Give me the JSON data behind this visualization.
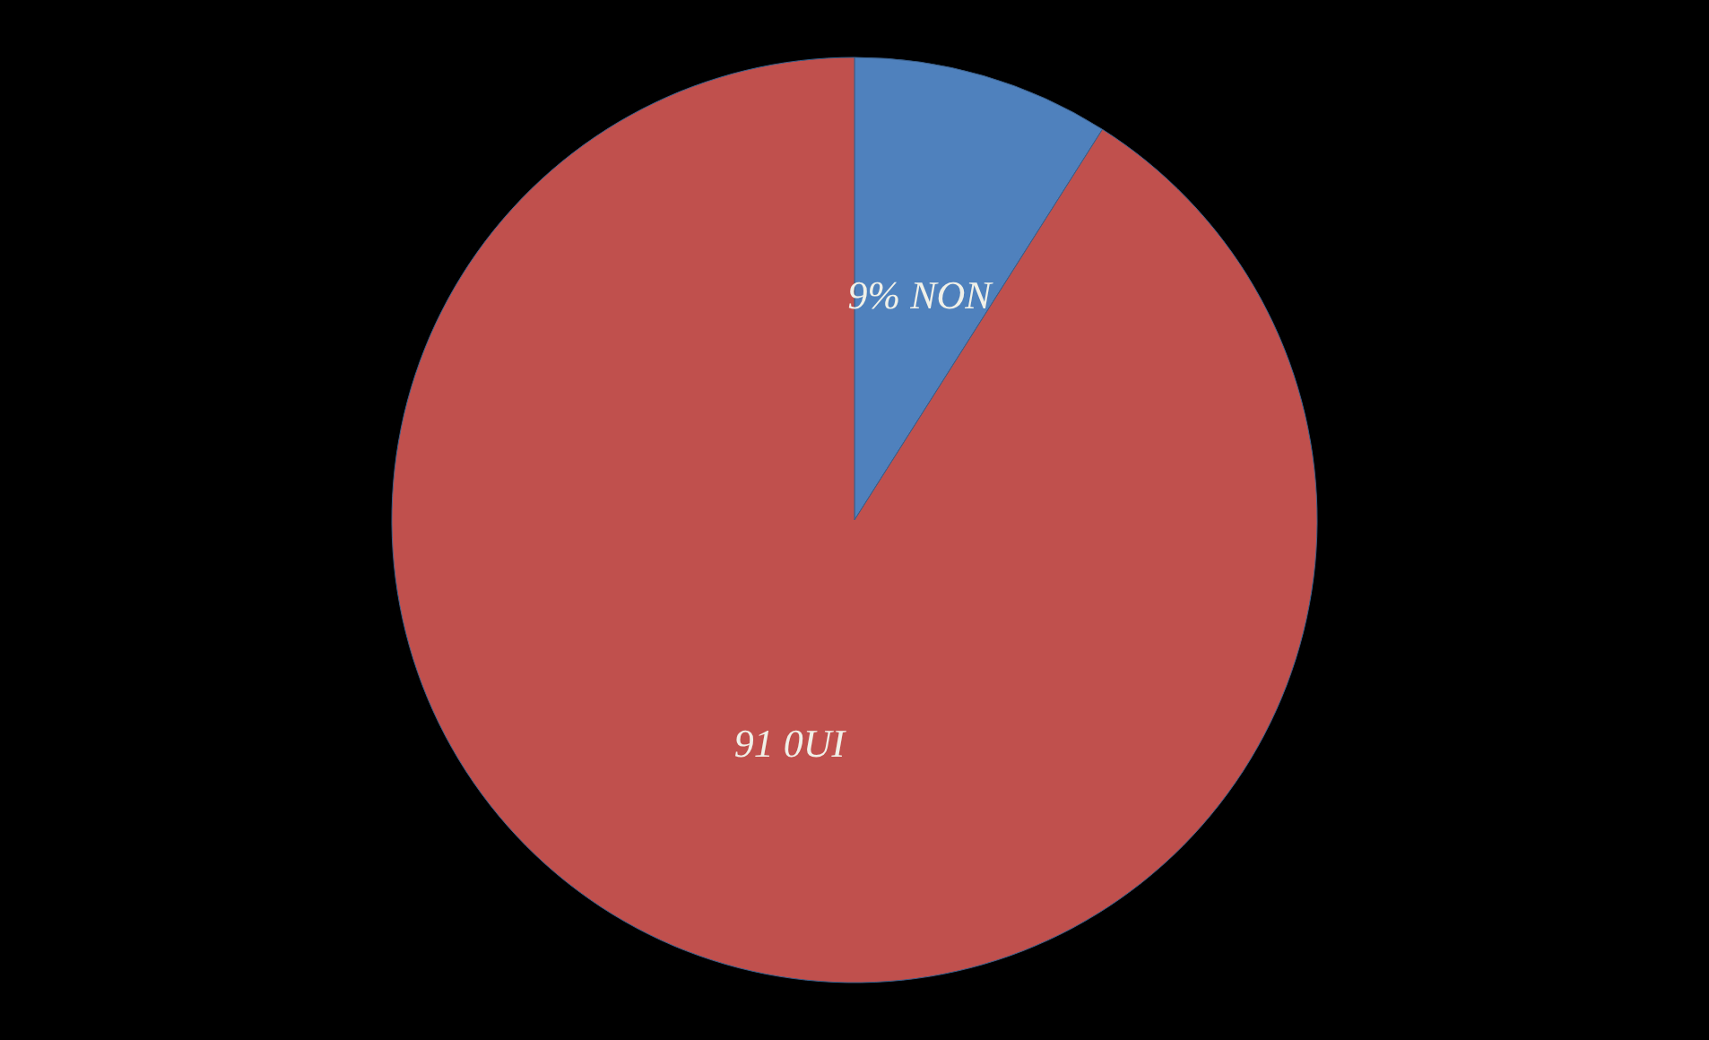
{
  "chart_data": {
    "type": "pie",
    "categories": [
      "NON",
      "0UI"
    ],
    "values": [
      9,
      91
    ],
    "value_labels": [
      "9%",
      "91"
    ],
    "colors": [
      "#4f81bd",
      "#c0504d"
    ]
  }
}
